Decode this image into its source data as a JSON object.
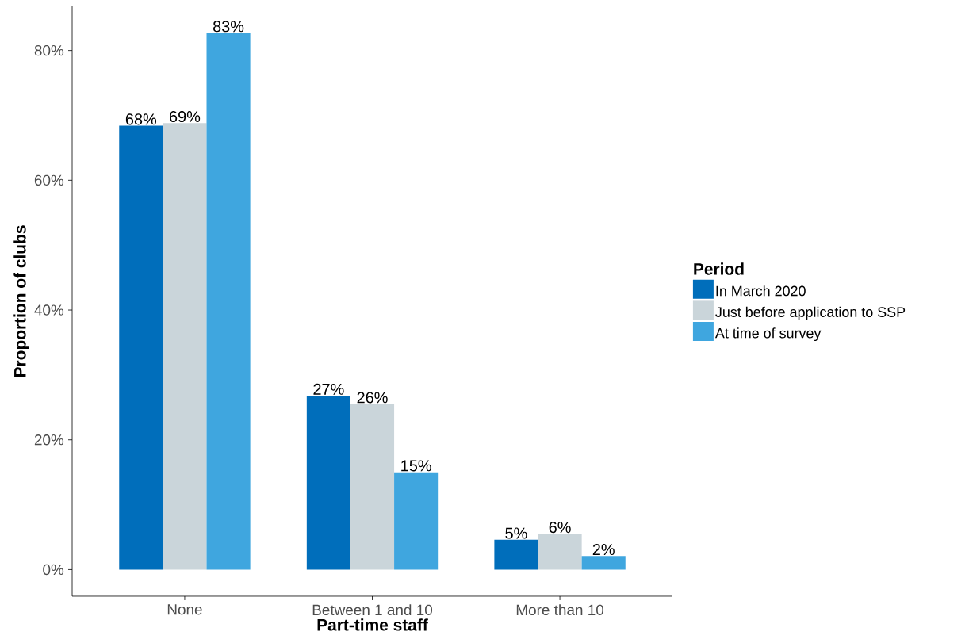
{
  "chart_data": {
    "type": "bar",
    "xlabel": "Part-time staff",
    "ylabel": "Proportion of clubs",
    "legend_title": "Period",
    "categories": [
      "None",
      "Between 1 and 10",
      "More than 10"
    ],
    "series": [
      {
        "name": "In March 2020",
        "color": "#006ebb",
        "values": [
          68.4,
          26.8,
          4.6
        ],
        "value_labels": [
          "68%",
          "27%",
          "5%"
        ]
      },
      {
        "name": "Just before application to SSP",
        "color": "#cad5da",
        "values": [
          68.8,
          25.5,
          5.5
        ],
        "value_labels": [
          "69%",
          "26%",
          "6%"
        ]
      },
      {
        "name": "At time of survey",
        "color": "#3fa6df",
        "values": [
          82.7,
          15.0,
          2.1
        ],
        "value_labels": [
          "83%",
          "15%",
          "2%"
        ]
      }
    ],
    "ylim": [
      -4.1,
      86.8
    ],
    "yticks": [
      {
        "value": 0,
        "label": "0%"
      },
      {
        "value": 20,
        "label": "20%"
      },
      {
        "value": 40,
        "label": "40%"
      },
      {
        "value": 60,
        "label": "60%"
      },
      {
        "value": 80,
        "label": "80%"
      }
    ],
    "grid": false,
    "legend": "right"
  }
}
